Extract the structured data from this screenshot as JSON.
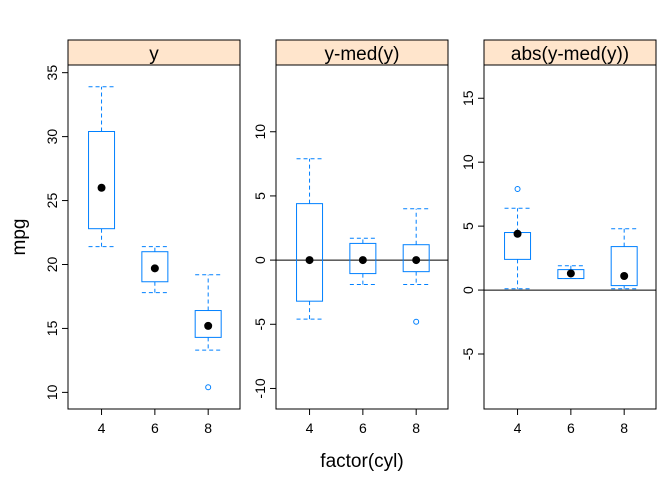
{
  "chart_data": {
    "type": "boxplot",
    "xlabel": "factor(cyl)",
    "ylabel": "mpg",
    "categories": [
      "4",
      "6",
      "8"
    ],
    "box_color": "#0080ff",
    "strip_color": "#ffe5cc",
    "panels": [
      {
        "title": "y",
        "ylim": [
          8.7,
          35.6
        ],
        "yticks": [
          10,
          15,
          20,
          25,
          30,
          35
        ],
        "reference_line": null,
        "boxes": [
          {
            "category": "4",
            "whisker_low": 21.4,
            "q1": 22.8,
            "median": 26.0,
            "q3": 30.4,
            "whisker_high": 33.9,
            "outliers": []
          },
          {
            "category": "6",
            "whisker_low": 17.8,
            "q1": 18.65,
            "median": 19.7,
            "q3": 21.0,
            "whisker_high": 21.4,
            "outliers": []
          },
          {
            "category": "8",
            "whisker_low": 13.3,
            "q1": 14.3,
            "median": 15.2,
            "q3": 16.4,
            "whisker_high": 19.2,
            "outliers": [
              10.4
            ]
          }
        ]
      },
      {
        "title": "y-med(y)",
        "ylim": [
          -11.6,
          15.2
        ],
        "yticks": [
          -10,
          -5,
          0,
          5,
          10
        ],
        "reference_line": 0,
        "boxes": [
          {
            "category": "4",
            "whisker_low": -4.6,
            "q1": -3.2,
            "median": 0,
            "q3": 4.4,
            "whisker_high": 7.9,
            "outliers": []
          },
          {
            "category": "6",
            "whisker_low": -1.9,
            "q1": -1.05,
            "median": 0,
            "q3": 1.3,
            "whisker_high": 1.7,
            "outliers": []
          },
          {
            "category": "8",
            "whisker_low": -1.9,
            "q1": -0.9,
            "median": 0,
            "q3": 1.2,
            "whisker_high": 4.0,
            "outliers": [
              -4.8
            ]
          }
        ]
      },
      {
        "title": "abs(y-med(y))",
        "ylim": [
          -9.3,
          17.6
        ],
        "yticks": [
          -5,
          0,
          5,
          10,
          15
        ],
        "reference_line": 0,
        "boxes": [
          {
            "category": "4",
            "whisker_low": 0.1,
            "q1": 2.4,
            "median": 4.4,
            "q3": 4.5,
            "whisker_high": 6.4,
            "outliers": [
              7.9
            ]
          },
          {
            "category": "6",
            "whisker_low": 0.9,
            "q1": 0.9,
            "median": 1.3,
            "q3": 1.6,
            "whisker_high": 1.9,
            "outliers": []
          },
          {
            "category": "8",
            "whisker_low": 0.1,
            "q1": 0.35,
            "median": 1.1,
            "q3": 3.4,
            "whisker_high": 4.8,
            "outliers": []
          }
        ]
      }
    ]
  }
}
